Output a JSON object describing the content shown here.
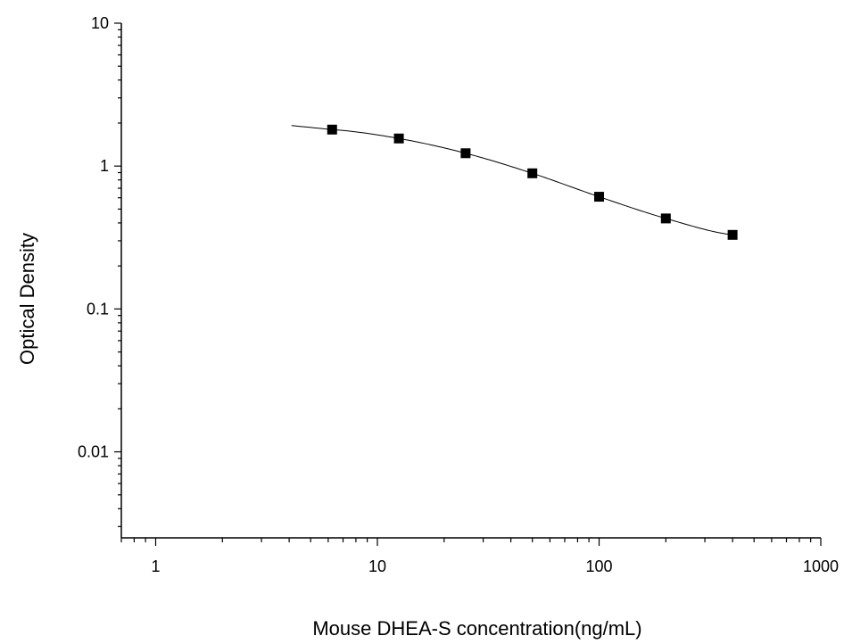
{
  "chart_data": {
    "type": "scatter",
    "xlabel": "Mouse DHEA-S concentration(ng/mL)",
    "ylabel": "Optical Density",
    "xscale": "log",
    "yscale": "log",
    "xlim": [
      0.7,
      1000
    ],
    "ylim": [
      0.0025,
      10
    ],
    "x_ticks": [
      {
        "value": 1,
        "label": "1"
      },
      {
        "value": 10,
        "label": "10"
      },
      {
        "value": 100,
        "label": "100"
      },
      {
        "value": 1000,
        "label": "1000"
      }
    ],
    "y_ticks": [
      {
        "value": 0.01,
        "label": "0.01"
      },
      {
        "value": 0.1,
        "label": "0.1"
      },
      {
        "value": 1,
        "label": "1"
      },
      {
        "value": 10,
        "label": "10"
      }
    ],
    "grid": false,
    "legend": "none",
    "series": [
      {
        "style": "square-markers",
        "color": "#000000",
        "x": [
          6.25,
          12.5,
          25,
          50,
          100,
          200,
          400
        ],
        "y": [
          1.8,
          1.56,
          1.23,
          0.89,
          0.61,
          0.43,
          0.33
        ]
      }
    ],
    "fit_curve": {
      "type": "4PL",
      "color": "#000000",
      "x_range": [
        4.1,
        400
      ]
    }
  }
}
